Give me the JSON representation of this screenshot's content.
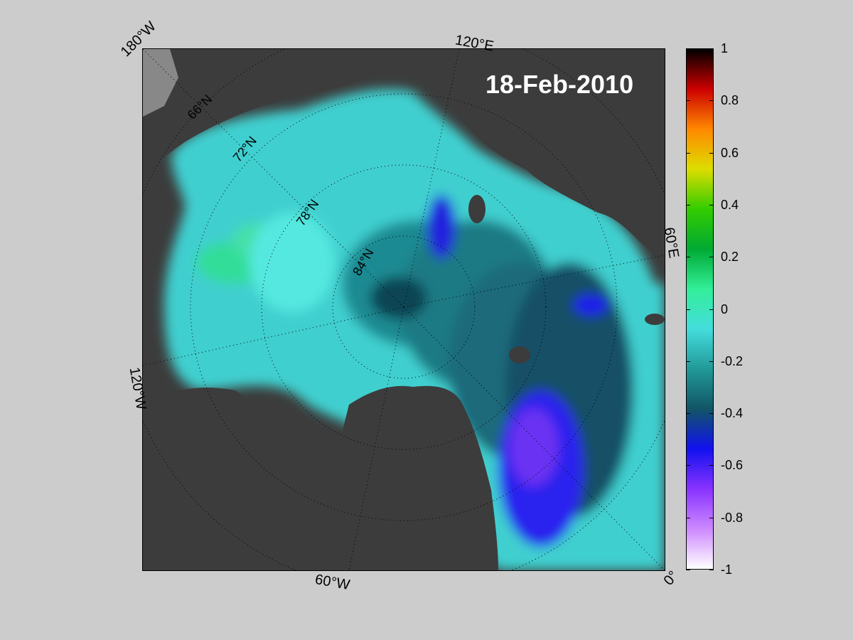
{
  "map": {
    "date": "18-Feb-2010",
    "projection": "north-polar-stereographic",
    "meridian_labels": [
      "180°W",
      "120°E",
      "60°E",
      "0°",
      "60°W",
      "120°W"
    ],
    "latitude_labels": [
      "66°N",
      "72°N",
      "78°N",
      "84°N"
    ]
  },
  "colorbar": {
    "min": -1,
    "max": 1,
    "ticks": [
      "1",
      "0.8",
      "0.6",
      "0.4",
      "0.2",
      "0",
      "-0.2",
      "-0.4",
      "-0.6",
      "-0.8",
      "-1"
    ],
    "colors": [
      "#000000",
      "#cc0000",
      "#ff8800",
      "#dddd00",
      "#33cc00",
      "#00aa33",
      "#33ee99",
      "#44dddd",
      "#229999",
      "#115566",
      "#1111ee",
      "#8833ff",
      "#cc88ff",
      "#ffffff"
    ]
  },
  "colors": {
    "background": "#cccccc",
    "land": "#3c3c3c",
    "unknown_area": "#888888"
  }
}
